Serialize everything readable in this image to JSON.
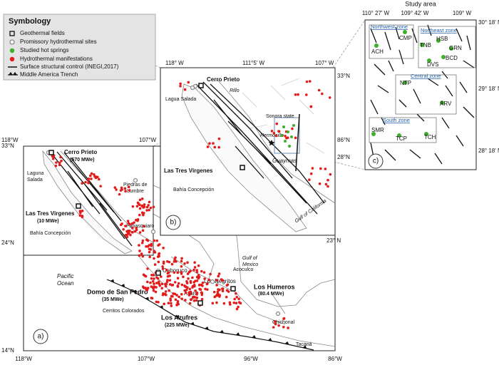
{
  "legend": {
    "title": "Symbology",
    "items": [
      "Geothermal fields",
      "Promissory hydrothermal sites",
      "Studied hot springs",
      "Hydrothermal manifestations",
      "Surface structural control (INEGI,2017)",
      "Middle America Trench"
    ]
  },
  "panel_a": {
    "label": "a)",
    "coords": [
      "118°W",
      "107°W",
      "86°N",
      "28°N",
      "33°N",
      "24°N",
      "14°N",
      "118°W",
      "107°W",
      "96°W",
      "86°W"
    ],
    "places": [
      "Cerro Prieto",
      "(570 MWe)",
      "Laguna",
      "Salada",
      "Las Tres Vírgenes",
      "(10 MWe)",
      "Bahía Concepción",
      "Piedras de",
      "Lumbre",
      "Papasquiaro",
      "Pacific",
      "Ocean",
      "Ceboruco",
      "Los Negritos",
      "Araró",
      "Domo de San Pedro",
      "(35 MWe)",
      "Cerritos Colorados",
      "Los Azufres",
      "(225 MWe)",
      "Acoculco",
      "Los Humeros",
      "(80.4 MWe)",
      "Gulf of",
      "Mexico",
      "Chichonal",
      "Tacaná"
    ]
  },
  "panel_b": {
    "label": "b)",
    "coords": [
      "118° W",
      "111°5' W",
      "107° W",
      "33°N",
      "23° N"
    ],
    "places": [
      "Cerro Prieto",
      "Rillo",
      "Lagua Salada",
      "Sonora state",
      "Hermosillo",
      "Guaymas",
      "Las Tres Vírgenes",
      "Bahía Concepción",
      "Gulf of California"
    ]
  },
  "panel_c": {
    "title": "Study area",
    "label": "c)",
    "coords": [
      "110° 27' W",
      "109° 42' W",
      "109° W",
      "30° 18' N",
      "29° 18' N",
      "28° 18' N"
    ],
    "zones": [
      "Northwest zone",
      "Northeast zone",
      "Central zone",
      "South zone"
    ],
    "sites": [
      "CMP",
      "ACH",
      "TNB",
      "HSB",
      "GRN",
      "BCD",
      "DVS",
      "NTP",
      "ARV",
      "SMR",
      "TCP",
      "TCH"
    ]
  }
}
